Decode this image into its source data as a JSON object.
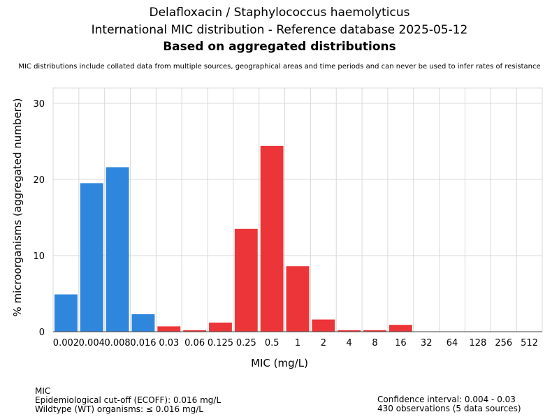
{
  "header": {
    "title_line1": "Delafloxacin / Staphylococcus haemolyticus",
    "title_line2": "International MIC distribution - Reference database 2025-05-12",
    "title_line3": "Based on aggregated distributions",
    "subtitle": "MIC distributions include collated data from multiple sources, geographical areas and time periods and can never be used to infer rates of resistance"
  },
  "chart_data": {
    "type": "bar",
    "title": "Delafloxacin / Staphylococcus haemolyticus",
    "xlabel": "MIC (mg/L)",
    "ylabel": "% microorganisms (aggregated numbers)",
    "ylim": [
      0,
      32
    ],
    "yticks": [
      "0",
      "10",
      "20",
      "30"
    ],
    "categories": [
      "0.002",
      "0.004",
      "0.008",
      "0.016",
      "0.03",
      "0.06",
      "0.125",
      "0.25",
      "0.5",
      "1",
      "2",
      "4",
      "8",
      "16",
      "32",
      "64",
      "128",
      "256",
      "512"
    ],
    "values": [
      4.9,
      19.5,
      21.6,
      2.3,
      0.7,
      0.2,
      1.2,
      13.5,
      24.4,
      8.6,
      1.6,
      0.2,
      0.2,
      0.9,
      0,
      0,
      0,
      0,
      0
    ],
    "series_colors": {
      "wildtype": "#2f86dd",
      "non_wildtype": "#ec3538"
    },
    "wildtype_cutoff_category": "0.016",
    "grid": true,
    "legend": "none"
  },
  "footer": {
    "left_line1": "MIC",
    "left_line2": "Epidemiological cut-off (ECOFF): 0.016 mg/L",
    "left_line3": "Wildtype (WT) organisms: ≤ 0.016 mg/L",
    "right_line1": "Confidence interval: 0.004 - 0.03",
    "right_line2": "430 observations (5 data sources)"
  }
}
